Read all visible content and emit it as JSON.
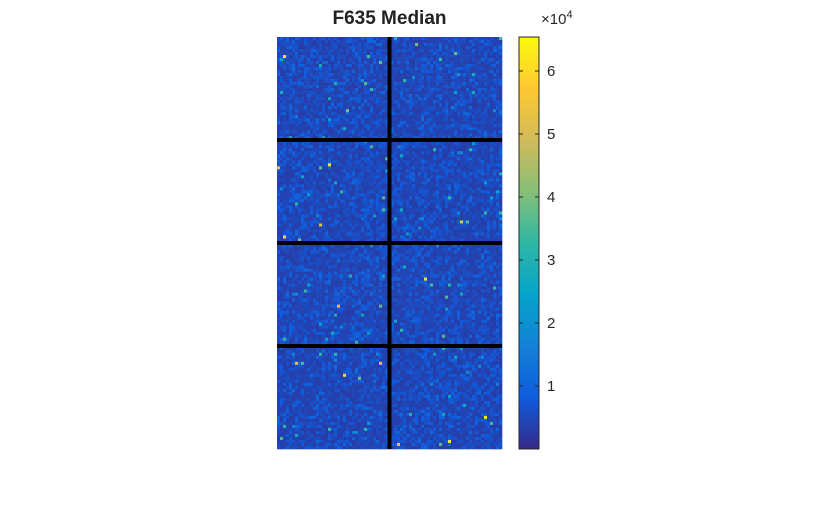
{
  "chart_data": {
    "type": "heatmap",
    "title": "F635 Median",
    "grid_rows": 137,
    "grid_cols": 75,
    "blocks": {
      "rows": 4,
      "cols": 2
    },
    "block_separator_color": "#000000",
    "colormap": "parula",
    "color_range": [
      0,
      65400
    ],
    "typical_value_range": [
      3000,
      12000
    ],
    "colorbar": {
      "ticks": [
        1,
        2,
        3,
        4,
        5,
        6
      ],
      "tick_labels": [
        "1",
        "2",
        "3",
        "4",
        "5",
        "6"
      ],
      "exponent_label_base": "×10",
      "exponent_label_power": "4"
    }
  }
}
